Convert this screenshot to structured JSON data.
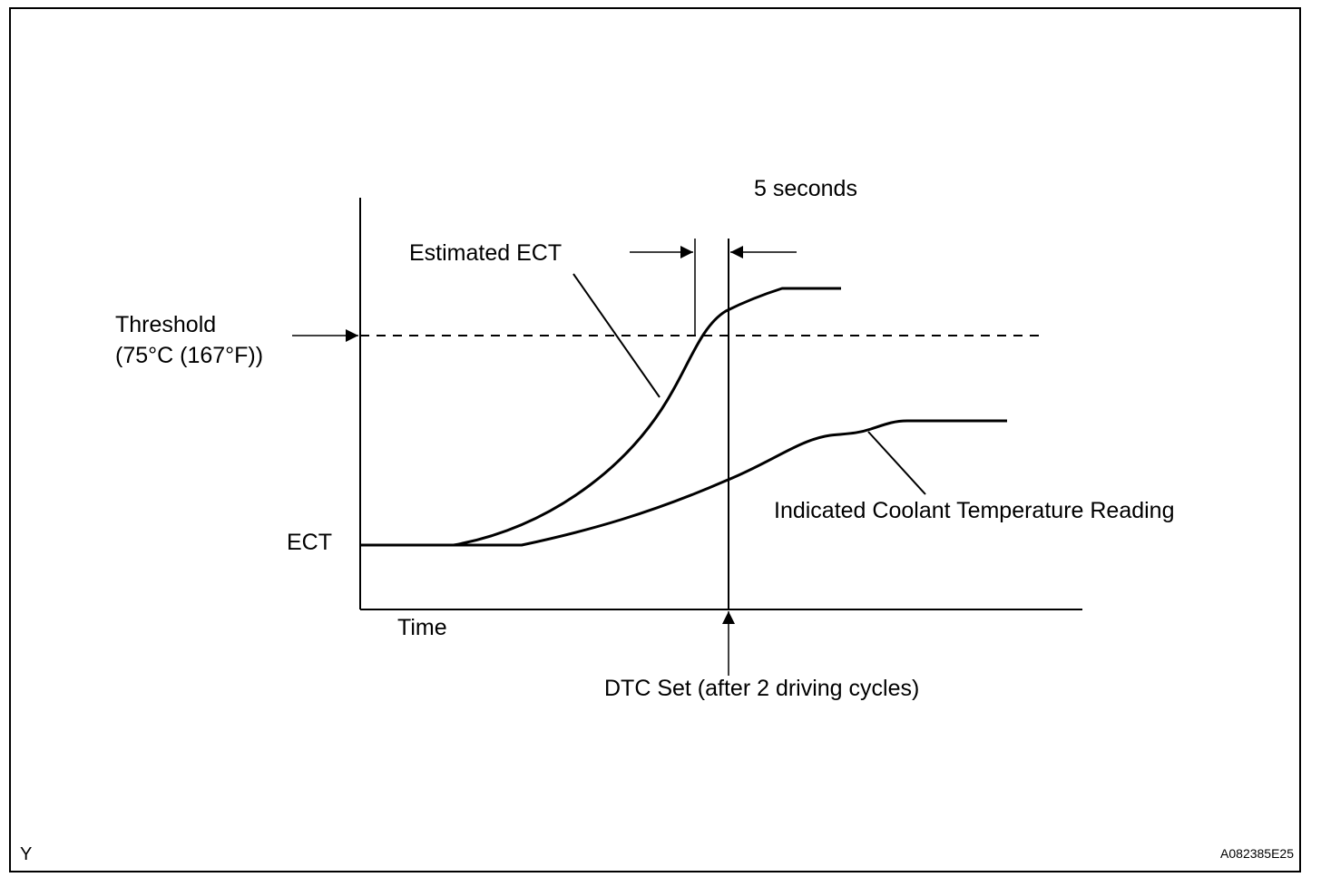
{
  "labels": {
    "five_seconds": "5 seconds",
    "estimated_ect": "Estimated ECT",
    "threshold_line1": "Threshold",
    "threshold_line2": "(75°C (167°F))",
    "ect": "ECT",
    "time": "Time",
    "indicated": "Indicated Coolant Temperature Reading",
    "dtc_set": "DTC Set (after 2 driving cycles)",
    "corner_left": "Y",
    "figure_code": "A082385E25"
  },
  "colors": {
    "line": "#000000",
    "background": "#ffffff"
  }
}
